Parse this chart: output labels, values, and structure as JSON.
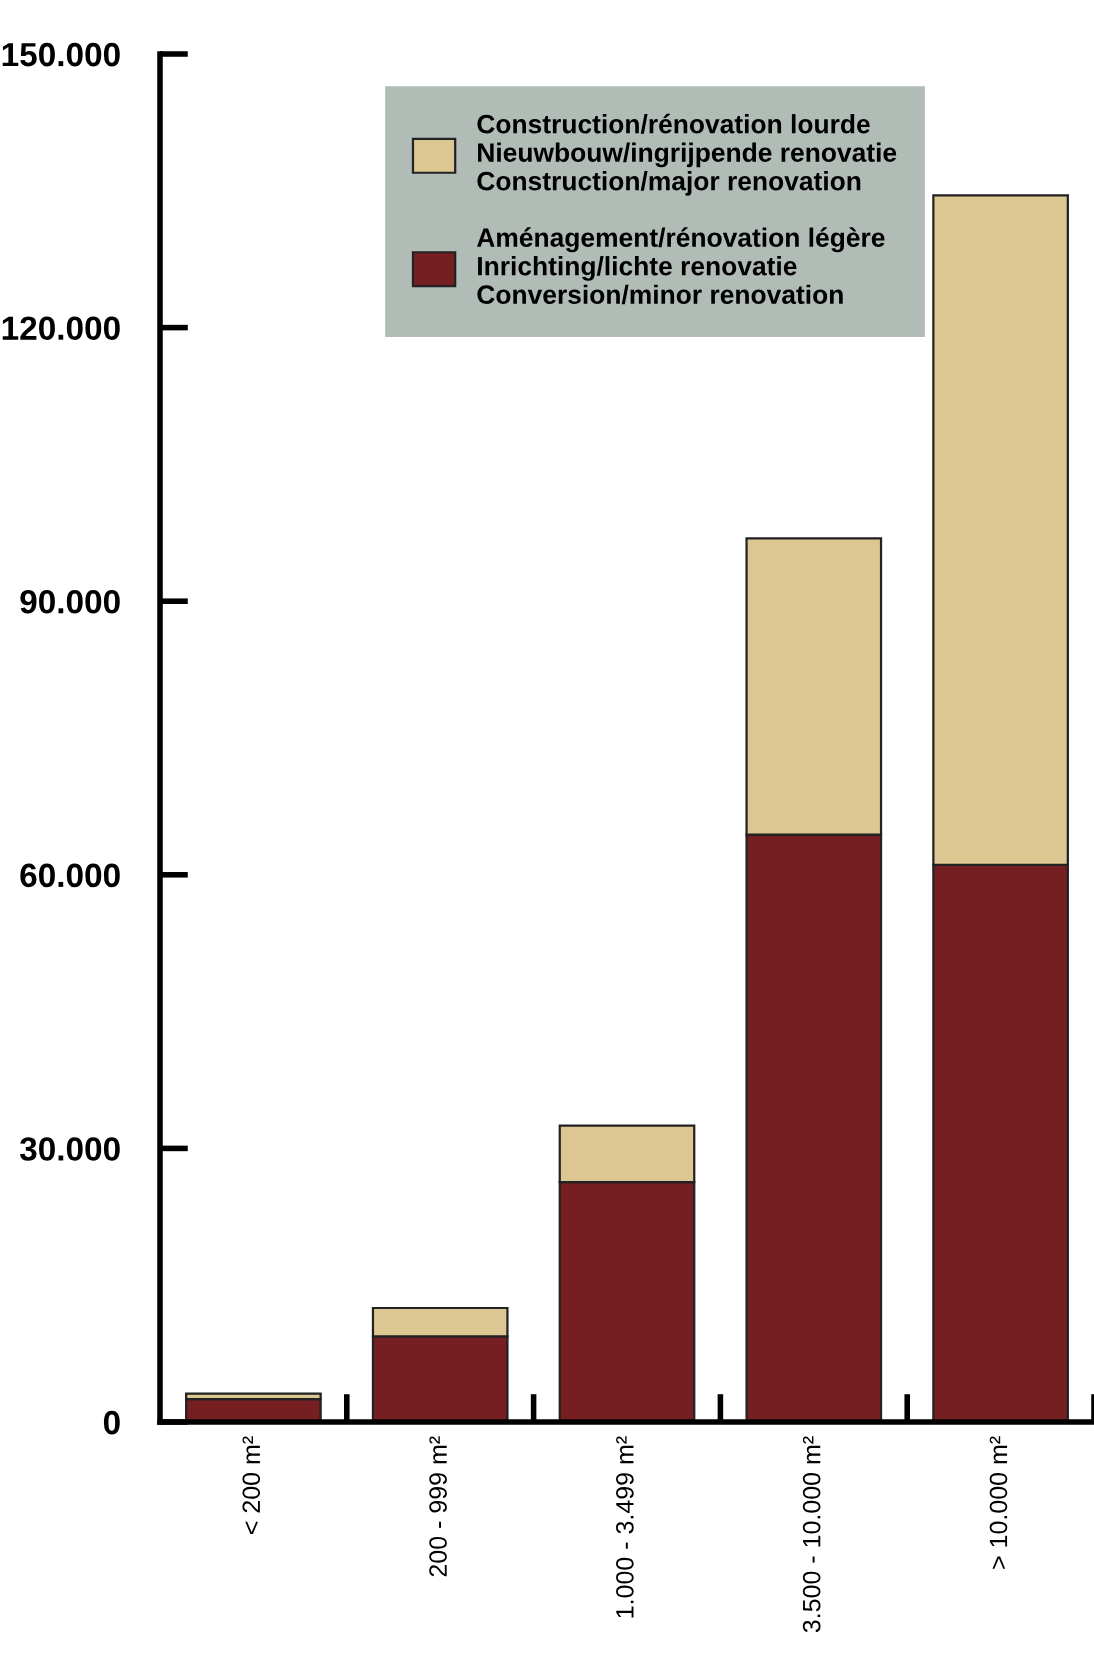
{
  "chart_data": {
    "type": "bar",
    "stacked": true,
    "categories": [
      "< 200 m²",
      "200 - 999 m²",
      "1.000 - 3.499 m²",
      "3.500 - 10.000 m²",
      "> 10.000 m²"
    ],
    "series": [
      {
        "name": "Aménagement/rénovation légère\nInrichting/lichte renovatie\nConversion/minor renovation",
        "color": "#761f23",
        "values": [
          2500,
          9400,
          26300,
          64400,
          61100
        ]
      },
      {
        "name": "Construction/rénovation lourde\nNieuwbouw/ingrijpende renovatie\nConstruction/major renovation",
        "color": "#dcc792",
        "values": [
          600,
          3100,
          6200,
          32500,
          73400
        ]
      }
    ],
    "ylim": [
      0,
      150000
    ],
    "yticks": [
      {
        "value": 0,
        "label": "0"
      },
      {
        "value": 30000,
        "label": "30.000"
      },
      {
        "value": 60000,
        "label": "60.000"
      },
      {
        "value": 90000,
        "label": "90.000"
      },
      {
        "value": 120000,
        "label": "120.000"
      },
      {
        "value": 150000,
        "label": "150.000"
      }
    ],
    "grid": false,
    "legend": "top"
  }
}
